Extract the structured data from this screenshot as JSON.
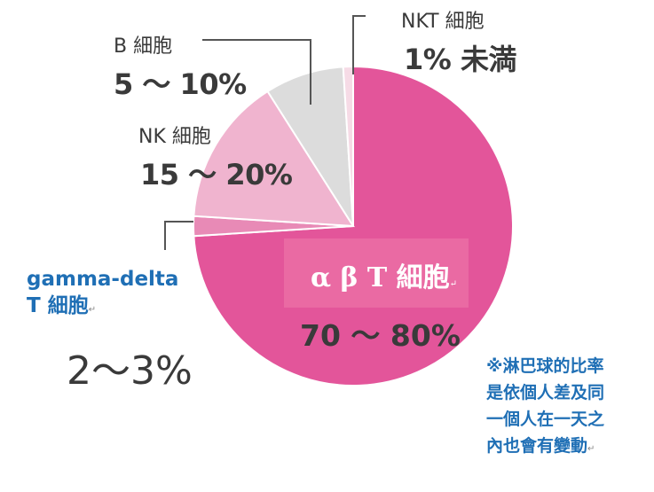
{
  "chart_data": {
    "type": "pie",
    "slices": [
      {
        "label": "αβT細胞",
        "range": "70 ～ 80%",
        "value": 74,
        "color": "#e3559a"
      },
      {
        "label": "gamma-delta T 細胞",
        "range": "2～3%",
        "value": 2,
        "color": "#e88ab6"
      },
      {
        "label": "NK 細胞",
        "range": "15 ～ 20%",
        "value": 15,
        "color": "#f0b4cf"
      },
      {
        "label": "B 細胞",
        "range": "5 ～ 10%",
        "value": 8,
        "color": "#dcdcdc"
      },
      {
        "label": "NKT 細胞",
        "range": "1% 未満",
        "value": 1,
        "color": "#f6dbe6"
      }
    ]
  },
  "labels": {
    "nkt_name": "NKT 細胞",
    "nkt_range": "1% 未満",
    "b_name": "B 細胞",
    "b_range": "5 ～ 10%",
    "nk_name": "NK 細胞",
    "nk_range": "15 ～ 20%",
    "gd_name_line1": "gamma-delta",
    "gd_name_line2": "T 細胞",
    "gd_range": "2～3%",
    "ab_name": "α β T 細胞",
    "ab_range": "70 ～ 80%"
  },
  "note": {
    "line1": "※淋巴球的比率",
    "line2": "是依個人差及同",
    "line3": "一個人在一天之",
    "line4": "內也會有變動"
  }
}
